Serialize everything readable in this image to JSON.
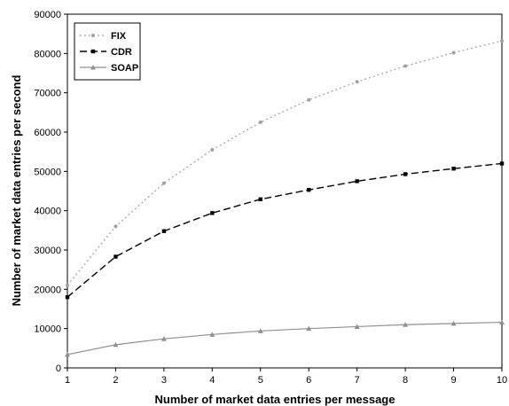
{
  "chart_data": {
    "type": "line",
    "title": "",
    "xlabel": "Number of market data entries per message",
    "ylabel": "Number of market data entries per second",
    "x": [
      1,
      2,
      3,
      4,
      5,
      6,
      7,
      8,
      9,
      10
    ],
    "xlim": [
      1,
      10
    ],
    "ylim": [
      0,
      90000
    ],
    "yticks": [
      0,
      10000,
      20000,
      30000,
      40000,
      50000,
      60000,
      70000,
      80000,
      90000
    ],
    "xtick_labels": [
      "1",
      "2",
      "3",
      "4",
      "5",
      "6",
      "7",
      "8",
      "9",
      "10"
    ],
    "ytick_labels": [
      "0",
      "10000",
      "20000",
      "30000",
      "40000",
      "50000",
      "60000",
      "70000",
      "80000",
      "90000"
    ],
    "grid": false,
    "legend": "top-left",
    "series": [
      {
        "name": "FIX",
        "values": [
          21000,
          36000,
          47000,
          55500,
          62500,
          68200,
          72800,
          76800,
          80200,
          83200
        ],
        "color": "#a0a0a0",
        "dash": "2,3",
        "marker": "circle"
      },
      {
        "name": "CDR",
        "values": [
          18000,
          28300,
          34800,
          39400,
          42900,
          45300,
          47500,
          49300,
          50700,
          52000
        ],
        "color": "#000000",
        "dash": "8,4",
        "marker": "square"
      },
      {
        "name": "SOAP",
        "values": [
          3400,
          5900,
          7400,
          8500,
          9400,
          10000,
          10500,
          11000,
          11300,
          11600
        ],
        "color": "#909090",
        "dash": "",
        "marker": "triangle"
      }
    ]
  }
}
